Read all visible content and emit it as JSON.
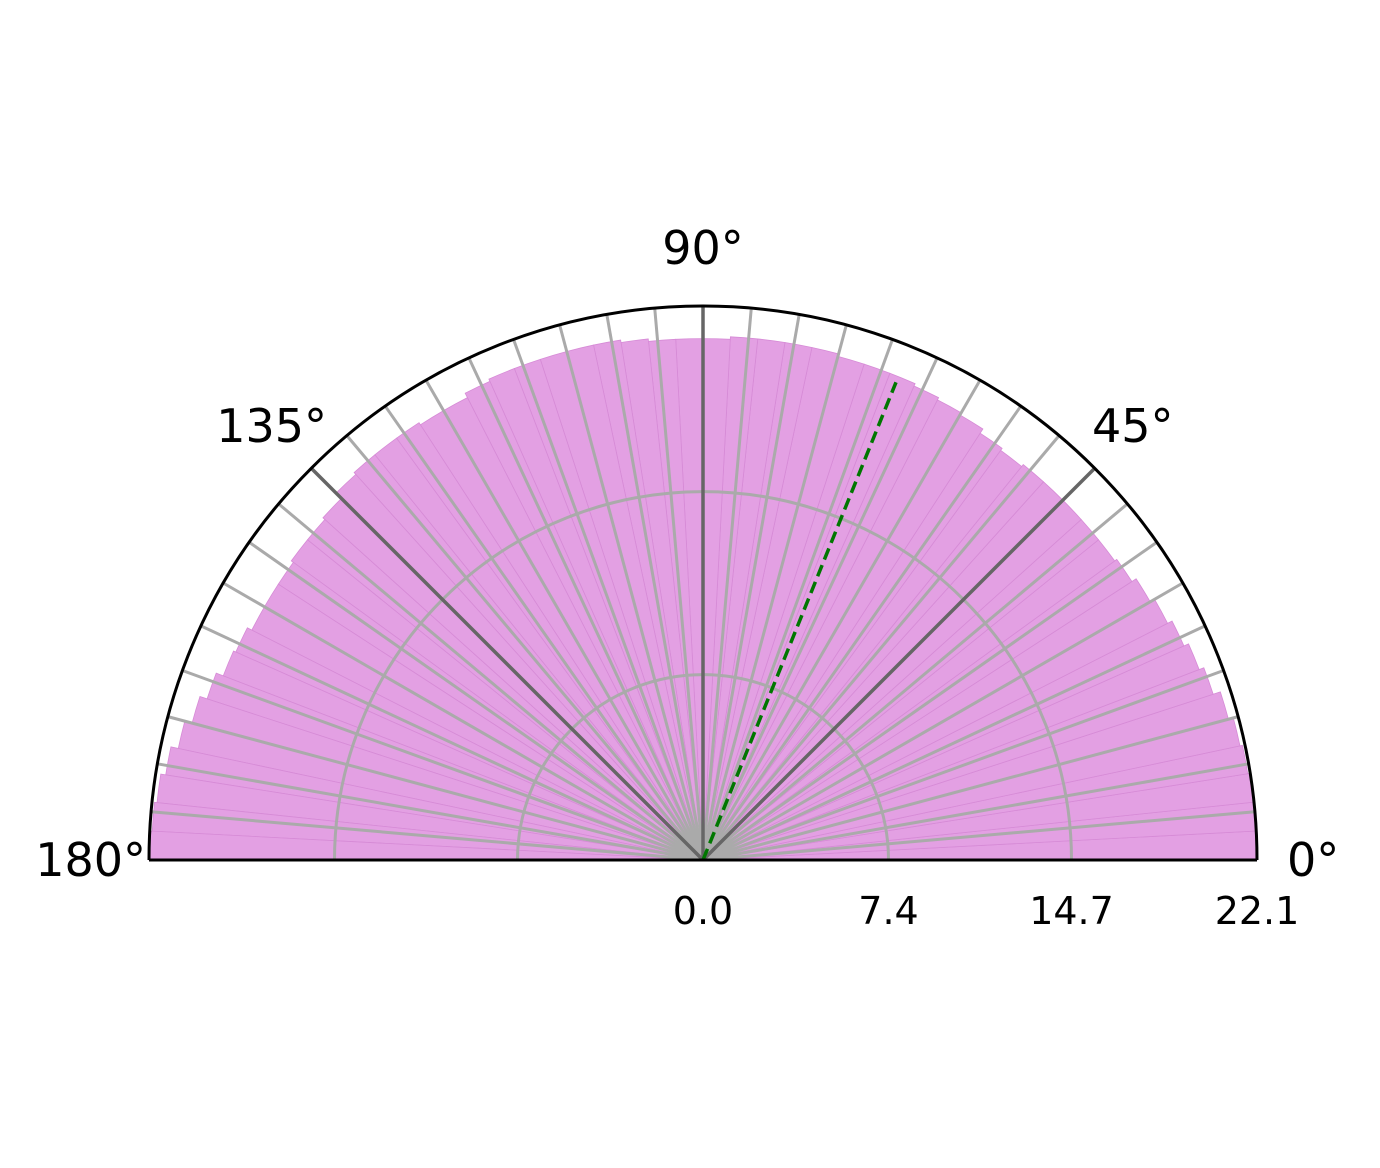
{
  "chart_data": {
    "type": "bar",
    "projection": "polar-half",
    "theta_range_deg": [
      0,
      180
    ],
    "r_range": [
      0,
      22.1
    ],
    "bar_color": "#e3a0e3",
    "bar_edge_color": "#d68bd6",
    "grid": true,
    "grid_color": "#aaaaaa",
    "major_spoke_color": "#666666",
    "reference_line": {
      "theta_deg": 68,
      "color": "#007700",
      "style": "dashed"
    },
    "theta_ticks": [
      {
        "deg": 0,
        "label": "0°"
      },
      {
        "deg": 45,
        "label": "45°"
      },
      {
        "deg": 90,
        "label": "90°"
      },
      {
        "deg": 135,
        "label": "135°"
      },
      {
        "deg": 180,
        "label": "180°"
      }
    ],
    "r_ticks": [
      {
        "value": 0.0,
        "label": "0.0"
      },
      {
        "value": 7.4,
        "label": "7.4"
      },
      {
        "value": 14.7,
        "label": "14.7"
      },
      {
        "value": 22.1,
        "label": "22.1"
      }
    ],
    "bin_width_deg": 3,
    "theta_start_deg": [
      0,
      3,
      6,
      9,
      12,
      15,
      18,
      21,
      24,
      27,
      30,
      33,
      36,
      39,
      42,
      45,
      48,
      51,
      54,
      57,
      60,
      63,
      66,
      69,
      72,
      75,
      78,
      81,
      84,
      87,
      90,
      93,
      96,
      99,
      102,
      105,
      108,
      111,
      114,
      117,
      120,
      123,
      126,
      129,
      132,
      135,
      138,
      141,
      144,
      147,
      150,
      153,
      156,
      159,
      162,
      165,
      168,
      171,
      174,
      177
    ],
    "values": [
      22.1,
      22.1,
      22.1,
      22.0,
      21.9,
      21.7,
      21.4,
      21.2,
      21.0,
      20.8,
      20.6,
      20.4,
      20.3,
      20.3,
      20.3,
      20.3,
      20.3,
      20.2,
      20.3,
      20.5,
      20.6,
      20.7,
      20.8,
      20.8,
      20.8,
      20.9,
      20.9,
      20.9,
      20.9,
      20.8,
      20.8,
      20.8,
      20.9,
      21.0,
      21.0,
      21.0,
      21.0,
      21.0,
      20.9,
      20.7,
      20.7,
      20.8,
      20.8,
      20.8,
      20.7,
      20.4,
      20.3,
      20.3,
      20.2,
      20.2,
      20.2,
      20.4,
      20.5,
      20.8,
      21.1,
      21.4,
      21.7,
      21.9,
      22.0,
      22.1
    ]
  }
}
